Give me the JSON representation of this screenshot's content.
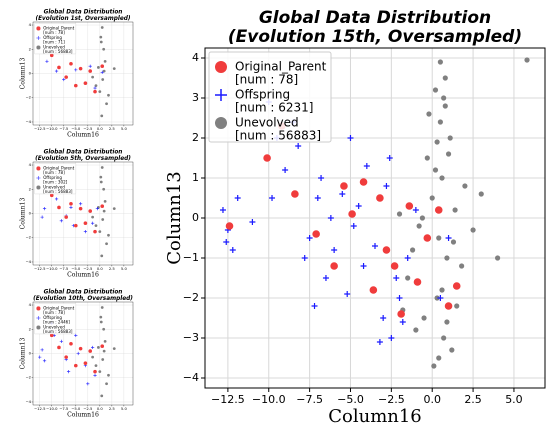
{
  "chart_data": [
    {
      "type": "scatter",
      "title": [
        "Global Data Distribution",
        "(Evolution 1st, Oversampled)"
      ],
      "xlabel": "Column16",
      "ylabel": "Column13",
      "xlim": [
        -13.9,
        6.9
      ],
      "ylim": [
        -4.25,
        4.25
      ],
      "xticks": [
        {
          "value": -12.5,
          "label": "−12.5"
        },
        {
          "value": -10,
          "label": "−10.0"
        },
        {
          "value": -7.5,
          "label": "−7.5"
        },
        {
          "value": -5,
          "label": "−5.0"
        },
        {
          "value": -2.5,
          "label": "−2.5"
        },
        {
          "value": 0,
          "label": "0.0"
        },
        {
          "value": 2.5,
          "label": "2.5"
        },
        {
          "value": 5,
          "label": "5.0"
        }
      ],
      "yticks": [
        {
          "value": -4,
          "label": "−4"
        },
        {
          "value": -2,
          "label": "−2"
        },
        0,
        2,
        4
      ],
      "grid": true,
      "legend": "upper left",
      "series": [
        {
          "name": "Original_Parent",
          "count_label": "[num : 78]",
          "color": "#f03c3c",
          "marker": "circle",
          "x": [
            -10,
            -8.5,
            -7,
            -6,
            -5,
            -4,
            -3,
            -2,
            -1,
            0.5
          ],
          "y": [
            1.5,
            0.5,
            -0.3,
            0.8,
            -1,
            0.4,
            -0.8,
            0.2,
            -1.5,
            0.6
          ]
        },
        {
          "name": "Offspring",
          "count_label": "[num : 71]",
          "color": "#1a1aff",
          "marker": "plus",
          "x": [
            -11,
            -9,
            -7.5,
            -5,
            -3,
            -2,
            -1,
            0.5
          ],
          "y": [
            1.0,
            0.2,
            -0.5,
            0.3,
            -0.8,
            0.6,
            -1.2,
            0.1
          ]
        },
        {
          "name": "Unevolved",
          "count_label": "[num : 56883]",
          "color": "#808080",
          "marker": "circle",
          "x": [
            0.5,
            0.2,
            0.8,
            1.1,
            -0.3,
            0.6,
            0.0,
            1.4,
            -0.8,
            0.4,
            0.9,
            -1.5,
            1.8,
            0.3,
            3.0
          ],
          "y": [
            3.8,
            3.0,
            2.0,
            1.0,
            0.5,
            -0.5,
            -1.5,
            -2.5,
            -1.0,
            -3.5,
            0.2,
            -0.3,
            -1.8,
            2.6,
            0.4
          ]
        }
      ]
    },
    {
      "type": "scatter",
      "title": [
        "Global Data Distribution",
        "(Evolution 5th, Oversampled)"
      ],
      "xlabel": "Column16",
      "ylabel": "Column13",
      "xlim": [
        -13.9,
        6.9
      ],
      "ylim": [
        -4.25,
        4.25
      ],
      "xticks": [
        {
          "value": -12.5,
          "label": "−12.5"
        },
        {
          "value": -10,
          "label": "−10.0"
        },
        {
          "value": -7.5,
          "label": "−7.5"
        },
        {
          "value": -5,
          "label": "−5.0"
        },
        {
          "value": -2.5,
          "label": "−2.5"
        },
        {
          "value": 0,
          "label": "0.0"
        },
        {
          "value": 2.5,
          "label": "2.5"
        },
        {
          "value": 5,
          "label": "5.0"
        }
      ],
      "yticks": [
        {
          "value": -4,
          "label": "−4"
        },
        {
          "value": -2,
          "label": "−2"
        },
        0,
        2,
        4
      ],
      "grid": true,
      "legend": "upper left",
      "series": [
        {
          "name": "Original_Parent",
          "count_label": "[num : 78]",
          "color": "#f03c3c",
          "marker": "circle",
          "x": [
            -10,
            -8.5,
            -7,
            -6,
            -5,
            -4,
            -3,
            -2,
            -1,
            0.5
          ],
          "y": [
            1.5,
            0.5,
            -0.3,
            0.8,
            -1,
            0.4,
            -0.8,
            0.2,
            -1.5,
            0.6
          ]
        },
        {
          "name": "Offspring",
          "count_label": "[num : 302]",
          "color": "#1a1aff",
          "marker": "plus",
          "x": [
            -12,
            -11.5,
            -9,
            -8,
            -6,
            -5.5,
            -4,
            -3,
            -2,
            -1.5,
            -0.5,
            -7
          ],
          "y": [
            -0.3,
            0.4,
            1.2,
            -0.6,
            0.5,
            -1.0,
            0.8,
            -1.5,
            0.2,
            -0.8,
            0.4,
            -0.2
          ]
        },
        {
          "name": "Unevolved",
          "count_label": "[num : 56883]",
          "color": "#808080",
          "marker": "circle",
          "x": [
            0.5,
            0.2,
            0.8,
            1.1,
            -0.3,
            0.6,
            0.0,
            1.4,
            -0.8,
            0.4,
            0.9,
            -1.5,
            1.8,
            0.3,
            3.0
          ],
          "y": [
            3.8,
            3.0,
            2.0,
            1.0,
            0.5,
            -0.5,
            -1.5,
            -2.5,
            -1.0,
            -3.5,
            0.2,
            -0.3,
            -1.8,
            2.6,
            0.4
          ]
        }
      ]
    },
    {
      "type": "scatter",
      "title": [
        "Global Data Distribution",
        "(Evolution 10th, Oversampled)"
      ],
      "xlabel": "Column16",
      "ylabel": "Column13",
      "xlim": [
        -13.9,
        6.9
      ],
      "ylim": [
        -4.25,
        4.25
      ],
      "xticks": [
        {
          "value": -12.5,
          "label": "−12.5"
        },
        {
          "value": -10,
          "label": "−10.0"
        },
        {
          "value": -7.5,
          "label": "−7.5"
        },
        {
          "value": -5,
          "label": "−5.0"
        },
        {
          "value": -2.5,
          "label": "−2.5"
        },
        {
          "value": 0,
          "label": "0.0"
        },
        {
          "value": 2.5,
          "label": "2.5"
        },
        {
          "value": 5,
          "label": "5.0"
        }
      ],
      "yticks": [
        {
          "value": -4,
          "label": "−4"
        },
        {
          "value": -2,
          "label": "−2"
        },
        0,
        2,
        4
      ],
      "grid": true,
      "legend": "upper left",
      "series": [
        {
          "name": "Original_Parent",
          "count_label": "[num : 78]",
          "color": "#f03c3c",
          "marker": "circle",
          "x": [
            -10,
            -8.5,
            -7,
            -6,
            -5,
            -4,
            -3,
            -2,
            -1,
            0.5
          ],
          "y": [
            1.5,
            0.5,
            -0.3,
            0.8,
            -1,
            0.4,
            -0.8,
            0.2,
            -1.5,
            0.6
          ]
        },
        {
          "name": "Offspring",
          "count_label": "[num : 2446]",
          "color": "#1a1aff",
          "marker": "plus",
          "x": [
            -12.5,
            -12,
            -11.5,
            -10,
            -9.5,
            -8,
            -7,
            -6.5,
            -5,
            -4.5,
            -3,
            -2.5,
            -1.5,
            -1
          ],
          "y": [
            -0.3,
            0.3,
            -0.6,
            2.5,
            1.5,
            1.0,
            -0.5,
            -1.5,
            1.5,
            0.0,
            -1.0,
            -2.5,
            0.5,
            -1.8
          ]
        },
        {
          "name": "Unevolved",
          "count_label": "[num : 56883]",
          "color": "#808080",
          "marker": "circle",
          "x": [
            0.5,
            0.2,
            0.8,
            1.1,
            -0.3,
            0.6,
            0.0,
            1.4,
            -0.8,
            0.4,
            0.9,
            -1.5,
            1.8,
            0.3,
            3.0
          ],
          "y": [
            3.8,
            3.0,
            2.0,
            1.0,
            0.5,
            -0.5,
            -1.5,
            -2.5,
            -1.0,
            -3.5,
            0.2,
            -0.3,
            -1.8,
            2.6,
            0.4
          ]
        }
      ]
    },
    {
      "type": "scatter",
      "title": [
        "Global Data Distribution",
        "(Evolution 15th, Oversampled)"
      ],
      "xlabel": "Column16",
      "ylabel": "Column13",
      "xlim": [
        -13.9,
        6.9
      ],
      "ylim": [
        -4.25,
        4.25
      ],
      "xticks": [
        {
          "value": -12.5,
          "label": "−12.5"
        },
        {
          "value": -10,
          "label": "−10.0"
        },
        {
          "value": -7.5,
          "label": "−7.5"
        },
        {
          "value": -5,
          "label": "−5.0"
        },
        {
          "value": -2.5,
          "label": "−2.5"
        },
        {
          "value": 0,
          "label": "0.0"
        },
        {
          "value": 2.5,
          "label": "2.5"
        },
        {
          "value": 5,
          "label": "5.0"
        }
      ],
      "yticks": [
        {
          "value": -4,
          "label": "−4"
        },
        {
          "value": -3,
          "label": "−3"
        },
        {
          "value": -2,
          "label": "−2"
        },
        {
          "value": -1,
          "label": "−1"
        },
        0,
        1,
        2,
        3,
        4
      ],
      "grid": true,
      "legend": "upper left",
      "series": [
        {
          "name": "Original_Parent",
          "count_label": "[num : 78]",
          "color": "#f03c3c",
          "marker": "circle",
          "x": [
            -12.4,
            -10.1,
            -9.2,
            -8.4,
            -7.1,
            -6.0,
            -5.4,
            -4.9,
            -4.2,
            -3.6,
            -2.8,
            -2.3,
            -1.9,
            -1.4,
            -0.9,
            -0.3,
            0.4,
            1.0,
            1.5,
            -3.2
          ],
          "y": [
            -0.2,
            1.5,
            2.3,
            0.6,
            -0.4,
            -1.2,
            0.8,
            0.1,
            0.9,
            -1.8,
            -0.8,
            -1.2,
            -2.4,
            0.3,
            -1.6,
            -0.5,
            0.2,
            -2.2,
            -1.7,
            0.5
          ]
        },
        {
          "name": "Offspring",
          "count_label": "[num : 6231]",
          "color": "#1a1aff",
          "marker": "plus",
          "x": [
            -12.5,
            -12.8,
            -12.2,
            -11.9,
            -12.6,
            -10.0,
            -9.5,
            -9.0,
            -8.5,
            -9.8,
            -8.2,
            -7.5,
            -7.0,
            -6.5,
            -7.2,
            -6.8,
            -6.0,
            -5.5,
            -5.0,
            -4.5,
            -4.0,
            -3.5,
            -5.2,
            -4.8,
            -3.0,
            -2.5,
            -2.0,
            -1.5,
            -2.8,
            -2.2,
            -1.0,
            -3.2,
            -6.2,
            -7.8,
            -11.0,
            -4.2,
            -1.8,
            -2.6,
            0.5,
            1.0
          ],
          "y": [
            -0.3,
            0.2,
            -0.8,
            0.5,
            -0.6,
            2.9,
            2.0,
            1.2,
            2.4,
            0.5,
            1.8,
            -0.5,
            0.5,
            -1.5,
            -2.2,
            1.0,
            -0.8,
            0.6,
            2.0,
            0.3,
            1.3,
            -0.7,
            -1.9,
            -0.2,
            -2.5,
            -3.0,
            -2.0,
            -1.0,
            0.8,
            -1.5,
            0.2,
            -3.1,
            0.0,
            -1.0,
            -0.1,
            -1.2,
            -2.6,
            1.5,
            -2.0,
            -0.5
          ]
        },
        {
          "name": "Unevolved",
          "count_label": "[num : 56883]",
          "color": "#808080",
          "marker": "circle",
          "x": [
            0.5,
            0.2,
            0.8,
            1.1,
            -0.3,
            0.6,
            0.0,
            1.4,
            -0.8,
            0.4,
            0.9,
            -1.5,
            1.8,
            0.3,
            -0.5,
            0.7,
            1.2,
            -1.0,
            0.1,
            0.5,
            2.0,
            -2.0,
            0.6,
            1.0,
            -0.2,
            0.8,
            0.4,
            1.5,
            -1.2,
            0.2,
            2.5,
            3.0,
            4.0,
            5.8,
            -0.6,
            0.9,
            0.3,
            1.3,
            -1.8,
            0.7
          ],
          "y": [
            3.9,
            3.2,
            2.8,
            2.0,
            1.5,
            1.0,
            0.5,
            0.2,
            -0.2,
            -0.5,
            -1.0,
            -1.5,
            -1.2,
            -2.0,
            -2.5,
            -3.0,
            -3.3,
            -2.8,
            -3.7,
            2.4,
            0.8,
            0.1,
            -1.8,
            1.6,
            2.6,
            3.5,
            -3.5,
            -2.2,
            -0.8,
            1.2,
            -0.3,
            0.6,
            -1.0,
            3.95,
            0.0,
            -2.6,
            1.9,
            -0.6,
            -2.3,
            3.0
          ]
        }
      ]
    }
  ]
}
